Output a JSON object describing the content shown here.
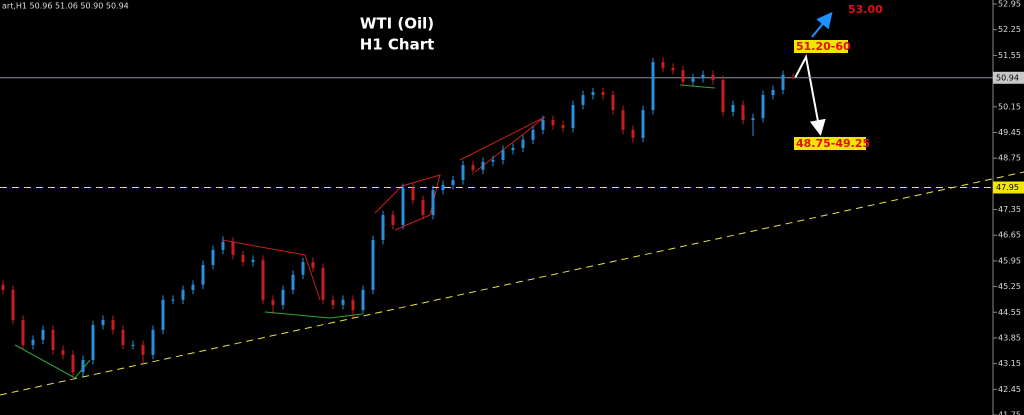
{
  "chart_data": {
    "type": "candlestick",
    "title": "WTI (Oil)",
    "subtitle": "H1 Chart",
    "info": "art,H1  50.96 51.06 50.90 50.94",
    "open": [
      45.3,
      45.16,
      44.34,
      43.66,
      43.8,
      44.07,
      43.52,
      43.39,
      42.92,
      43.25,
      44.2,
      44.34,
      44.07,
      43.66,
      43.66,
      43.39,
      44.07,
      44.89,
      44.89,
      45.16,
      45.3,
      45.84,
      46.25,
      46.47,
      46.11,
      45.92,
      45.98,
      44.89,
      44.75,
      45.16,
      45.57,
      45.92,
      45.76,
      44.89,
      44.75,
      44.89,
      44.61,
      45.16,
      46.52,
      47.2,
      46.93,
      47.94,
      47.61,
      47.2,
      47.88,
      48.02,
      48.15,
      48.56,
      48.43,
      48.65,
      48.7,
      48.97,
      49.03,
      49.25,
      49.52,
      49.79,
      49.65,
      49.57,
      50.2,
      50.47,
      50.55,
      50.47,
      50.06,
      49.52,
      49.3,
      50.06,
      51.37,
      51.21,
      51.15,
      50.83,
      50.93,
      51.02,
      50.88,
      50.01,
      50.2,
      49.79,
      49.84,
      50.47,
      50.61,
      50.96
    ],
    "high": [
      45.42,
      45.28,
      44.46,
      43.92,
      44.19,
      44.19,
      43.64,
      43.51,
      43.37,
      44.32,
      44.46,
      44.46,
      44.19,
      43.78,
      43.78,
      44.19,
      45.01,
      45.01,
      45.28,
      45.42,
      45.96,
      46.37,
      46.62,
      46.59,
      46.23,
      46.1,
      46.1,
      45.01,
      45.28,
      45.69,
      46.04,
      46.04,
      45.88,
      45.01,
      45.01,
      45.01,
      45.28,
      46.64,
      47.32,
      47.32,
      48.06,
      48.06,
      47.73,
      48.0,
      48.14,
      48.27,
      48.68,
      48.68,
      48.77,
      48.82,
      49.09,
      49.15,
      49.37,
      49.64,
      49.91,
      49.91,
      49.77,
      50.32,
      50.59,
      50.67,
      50.67,
      50.59,
      50.18,
      49.64,
      50.18,
      51.49,
      51.49,
      51.33,
      51.27,
      51.05,
      51.14,
      51.14,
      51.0,
      50.32,
      50.32,
      49.96,
      50.59,
      50.73,
      51.14,
      51.06
    ],
    "low": [
      45.04,
      44.22,
      43.54,
      43.54,
      43.68,
      43.4,
      43.27,
      42.8,
      42.8,
      43.13,
      44.08,
      43.95,
      43.54,
      43.54,
      43.15,
      43.27,
      43.95,
      44.77,
      44.77,
      45.04,
      45.18,
      45.72,
      46.13,
      45.99,
      45.8,
      45.8,
      44.77,
      44.5,
      44.63,
      45.04,
      45.45,
      45.64,
      44.77,
      44.63,
      44.63,
      44.4,
      44.49,
      45.04,
      46.4,
      46.81,
      46.81,
      47.49,
      47.08,
      47.08,
      47.76,
      47.9,
      48.03,
      48.31,
      48.31,
      48.53,
      48.58,
      48.85,
      48.91,
      49.13,
      49.4,
      49.53,
      49.45,
      49.45,
      50.08,
      50.35,
      50.35,
      49.94,
      49.4,
      49.18,
      49.18,
      49.94,
      51.09,
      51.03,
      50.71,
      50.71,
      50.81,
      50.76,
      49.89,
      49.89,
      49.67,
      49.35,
      49.72,
      50.35,
      50.49,
      50.9
    ],
    "close": [
      45.16,
      44.34,
      43.66,
      43.8,
      44.07,
      43.52,
      43.39,
      42.92,
      43.25,
      44.2,
      44.34,
      44.07,
      43.66,
      43.66,
      43.39,
      44.07,
      44.89,
      44.89,
      45.16,
      45.3,
      45.84,
      46.25,
      46.47,
      46.11,
      45.92,
      45.98,
      44.89,
      44.75,
      45.16,
      45.57,
      45.92,
      45.76,
      44.89,
      44.75,
      44.89,
      44.61,
      45.16,
      46.52,
      47.2,
      46.93,
      47.94,
      47.61,
      47.2,
      47.88,
      48.02,
      48.15,
      48.56,
      48.43,
      48.65,
      48.7,
      48.97,
      49.03,
      49.25,
      49.52,
      49.79,
      49.65,
      49.57,
      50.2,
      50.47,
      50.55,
      50.47,
      50.06,
      49.52,
      49.3,
      50.06,
      51.37,
      51.21,
      51.15,
      50.83,
      50.93,
      51.02,
      50.88,
      50.01,
      50.2,
      49.79,
      49.84,
      50.47,
      50.61,
      51.02,
      50.94
    ],
    "up_color": "#2a8fd8",
    "down_color": "#c81e1e",
    "ylim": [
      41.75,
      53.06
    ],
    "yticks": [
      52.95,
      52.25,
      51.55,
      50.15,
      49.45,
      48.75,
      47.35,
      46.65,
      45.95,
      45.25,
      44.55,
      43.85,
      43.15,
      42.45,
      41.75
    ],
    "price_line": 50.94,
    "support_line": 47.95,
    "annotations": [
      "53.00",
      "51.20-60",
      "48.75-49.25"
    ]
  }
}
